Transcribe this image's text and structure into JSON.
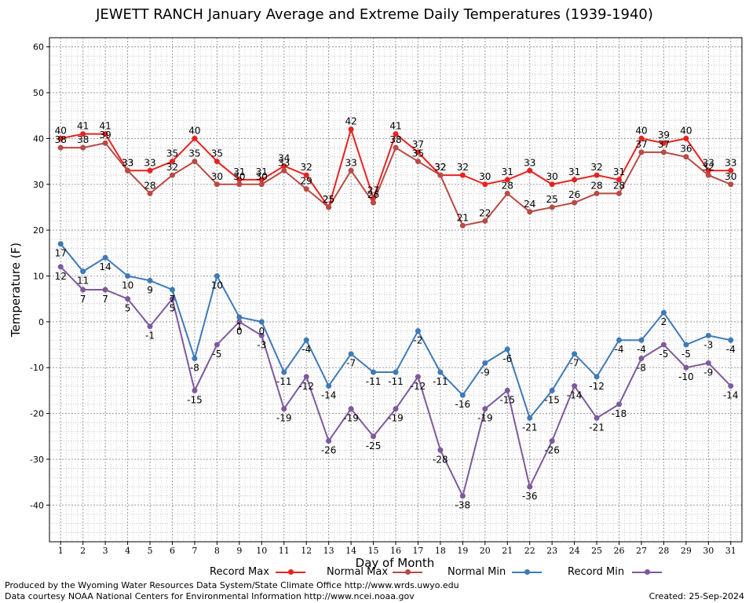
{
  "title": "JEWETT RANCH January Average and Extreme Daily Temperatures (1939-1940)",
  "footer_left_1": "Produced by the Wyoming Water Resources Data System/State Climate Office http://www.wrds.uwyo.edu",
  "footer_left_2": "Data courtesy NOAA National Centers for Environmental Information http://www.ncei.noaa.gov",
  "footer_right": "Created: 25-Sep-2024",
  "chart_data": {
    "type": "line",
    "title": "JEWETT RANCH January Average and Extreme Daily Temperatures (1939-1940)",
    "xlabel": "Day of Month",
    "ylabel": "Temperature (F)",
    "xlim": [
      0.5,
      31.5
    ],
    "ylim": [
      -48,
      62
    ],
    "yticks": [
      -40,
      -30,
      -20,
      -10,
      0,
      10,
      20,
      30,
      40,
      50,
      60
    ],
    "grid": true,
    "legend_position": "bottom",
    "x": [
      1,
      2,
      3,
      4,
      5,
      6,
      7,
      8,
      9,
      10,
      11,
      12,
      13,
      14,
      15,
      16,
      17,
      18,
      19,
      20,
      21,
      22,
      23,
      24,
      25,
      26,
      27,
      28,
      29,
      30,
      31
    ],
    "series": [
      {
        "name": "Record Max",
        "color": "#e8221f",
        "values": [
          40,
          41,
          41,
          33,
          33,
          35,
          40,
          35,
          31,
          31,
          34,
          32,
          25,
          42,
          27,
          41,
          37,
          32,
          32,
          30,
          31,
          33,
          30,
          31,
          32,
          31,
          40,
          39,
          40,
          33,
          33
        ]
      },
      {
        "name": "Normal Max",
        "color": "#b84a44",
        "values": [
          38,
          38,
          39,
          33,
          28,
          32,
          35,
          30,
          30,
          30,
          33,
          29,
          25,
          33,
          26,
          38,
          35,
          32,
          21,
          22,
          28,
          24,
          25,
          26,
          28,
          28,
          37,
          37,
          36,
          32,
          30
        ]
      },
      {
        "name": "Normal Min",
        "color": "#3e7ab6",
        "values": [
          17,
          11,
          14,
          10,
          9,
          7,
          -8,
          10,
          1,
          0,
          -11,
          -4,
          -14,
          -7,
          -11,
          -11,
          -2,
          -11,
          -16,
          -9,
          -6,
          -21,
          -15,
          -7,
          -12,
          -4,
          -4,
          2,
          -5,
          -3,
          -4
        ]
      },
      {
        "name": "Record Min",
        "color": "#7d5a9c",
        "values": [
          12,
          7,
          7,
          5,
          -1,
          5,
          -15,
          -5,
          0,
          -3,
          -19,
          -12,
          -26,
          -19,
          -25,
          -19,
          -12,
          -28,
          -38,
          -19,
          -15,
          -36,
          -26,
          -14,
          -21,
          -18,
          -8,
          -5,
          -10,
          -9,
          -14
        ]
      }
    ]
  }
}
